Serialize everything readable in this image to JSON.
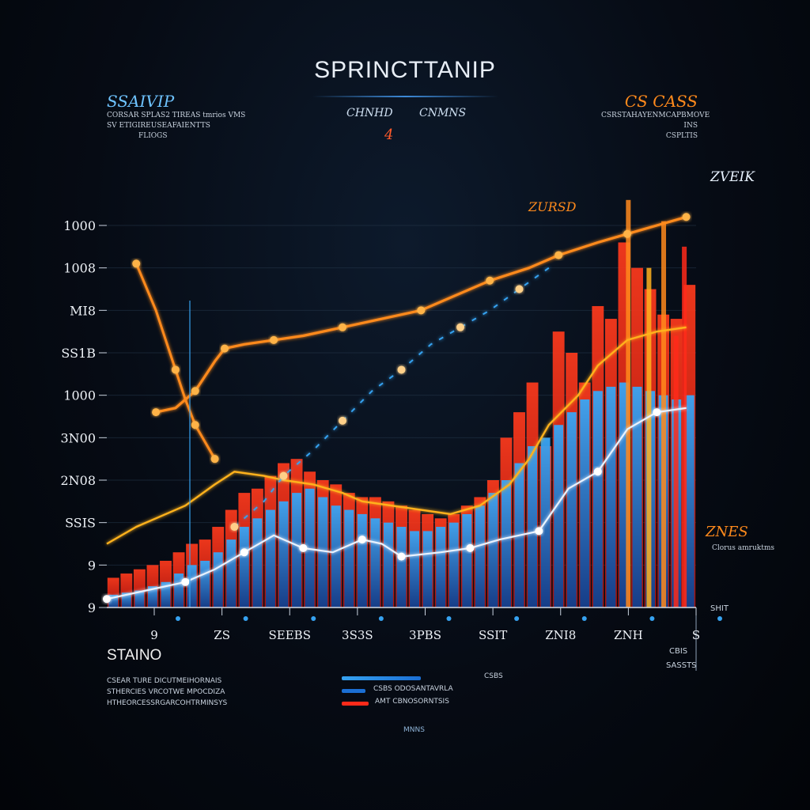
{
  "header": {
    "title": "SPRINCTTANIP"
  },
  "top_notes": {
    "left": {
      "heading": "SSAIVIP",
      "lines": [
        "CORSAR SPLAS2 TIREAS tmrios VMS",
        "SV ETIGIREUSEAFAIENTTS",
        "FLIOGS"
      ]
    },
    "center": {
      "label_a": "CHNHD",
      "label_b": "CNMNS",
      "marker": "4"
    },
    "right": {
      "heading": "CS CASS",
      "lines": [
        "CSRSTAHAYENMCAPBMOVE INS",
        "CSPLTIS"
      ]
    }
  },
  "callouts": {
    "mid_right": "ZURSD",
    "top_right": "ZVEIK",
    "lower_right_heading": "ZNES",
    "lower_right_line": "Clorus amruktms"
  },
  "colors": {
    "red": "#ff2a1a",
    "orange": "#ff8a1c",
    "yellow": "#ffb21e",
    "blue": "#1b6fd4",
    "light_blue": "#36a2f0",
    "white": "#e8f2ff",
    "grid": "#233447"
  },
  "chart_data": {
    "type": "bar",
    "title": "SPRINCTTANIP",
    "y_tick_labels": [
      "9",
      "9",
      "SSIS",
      "2N08",
      "3N00",
      "1000",
      "SS1B",
      "MI8",
      "1008",
      "1000"
    ],
    "x_tick_labels": [
      "9",
      "ZS",
      "SEEBS",
      "3S3S",
      "3PBS",
      "SSIT",
      "ZNI8",
      "ZNH",
      "S"
    ],
    "xlim": [
      0,
      60
    ],
    "ylim": [
      0,
      9
    ],
    "series": [
      {
        "name": "red bars",
        "type": "bar",
        "values": [
          0.7,
          0.8,
          0.9,
          1.0,
          1.1,
          1.3,
          1.5,
          1.6,
          1.9,
          2.3,
          2.7,
          2.8,
          3.1,
          3.4,
          3.5,
          3.2,
          3.0,
          2.9,
          2.7,
          2.6,
          2.6,
          2.5,
          2.4,
          2.3,
          2.2,
          2.1,
          2.2,
          2.4,
          2.6,
          3.0,
          4.0,
          4.6,
          5.3,
          3.8,
          6.5,
          6.0,
          5.3,
          7.1,
          6.8,
          8.6,
          8.0,
          7.5,
          6.9,
          6.8,
          7.6
        ]
      },
      {
        "name": "blue bars",
        "type": "bar",
        "values": [
          0.3,
          0.35,
          0.4,
          0.5,
          0.6,
          0.8,
          1.0,
          1.1,
          1.3,
          1.6,
          1.9,
          2.1,
          2.3,
          2.5,
          2.7,
          2.8,
          2.6,
          2.4,
          2.3,
          2.2,
          2.1,
          2.0,
          1.9,
          1.8,
          1.8,
          1.9,
          2.0,
          2.2,
          2.4,
          2.7,
          3.0,
          3.4,
          3.8,
          4.0,
          4.3,
          4.6,
          4.9,
          5.1,
          5.2,
          5.3,
          5.2,
          5.1,
          5.0,
          4.9,
          5.0
        ]
      },
      {
        "name": "orange line",
        "type": "line",
        "x": [
          5,
          7,
          9,
          11,
          12,
          14,
          17,
          20,
          24,
          28,
          32,
          35,
          39,
          43,
          46,
          50,
          53,
          56,
          59
        ],
        "y": [
          4.6,
          4.7,
          5.1,
          5.8,
          6.1,
          6.2,
          6.3,
          6.4,
          6.6,
          6.8,
          7.0,
          7.3,
          7.7,
          8.0,
          8.3,
          8.6,
          8.8,
          9.0,
          9.2
        ]
      },
      {
        "name": "blue-red stacked line",
        "type": "line",
        "x": [
          0,
          3,
          5,
          8,
          11,
          13,
          16,
          18,
          21,
          24,
          26,
          29,
          32,
          35,
          38,
          41,
          43,
          45,
          48,
          50,
          53,
          56,
          59
        ],
        "y": [
          1.5,
          1.9,
          2.1,
          2.4,
          2.9,
          3.2,
          3.1,
          3.0,
          2.9,
          2.7,
          2.5,
          2.4,
          2.3,
          2.2,
          2.4,
          2.9,
          3.5,
          4.3,
          5.0,
          5.7,
          6.3,
          6.5,
          6.6
        ]
      },
      {
        "name": "white line",
        "type": "line",
        "x": [
          0,
          4,
          8,
          11,
          14,
          17,
          20,
          23,
          26,
          28,
          30,
          34,
          37,
          40,
          44,
          47,
          50,
          53,
          56,
          59
        ],
        "y": [
          0.2,
          0.4,
          0.6,
          0.9,
          1.3,
          1.7,
          1.4,
          1.3,
          1.6,
          1.5,
          1.2,
          1.3,
          1.4,
          1.6,
          1.8,
          2.8,
          3.2,
          4.2,
          4.6,
          4.7
        ]
      },
      {
        "name": "orange descending line",
        "type": "line",
        "x": [
          3,
          5,
          7,
          8,
          9,
          10,
          11
        ],
        "y": [
          8.1,
          7.0,
          5.6,
          4.9,
          4.3,
          3.9,
          3.5
        ]
      },
      {
        "name": "dashed blue line",
        "type": "line",
        "x": [
          13,
          16,
          18,
          21,
          24,
          27,
          30,
          33,
          36,
          39,
          42,
          45
        ],
        "y": [
          1.9,
          2.5,
          3.1,
          3.7,
          4.4,
          5.1,
          5.6,
          6.2,
          6.6,
          7.0,
          7.5,
          8.0
        ]
      }
    ]
  },
  "footer": {
    "title": "STAINO",
    "lines": [
      "CSEAR TURE DICUTMEIHORNAIS",
      "STHERCIES VRCOTWE MPOCDIZA",
      "HTHEORCESSRGARCOHTRMINSYS"
    ],
    "legend": [
      {
        "label": "CSBS",
        "color": "#36a2f0"
      },
      {
        "label": "CSBS ODOSANTAVRLA",
        "color": "#1b6fd4"
      },
      {
        "label": "AMT CBNOSORNTSIS",
        "color": "#ff2a1a"
      }
    ],
    "legend_foot": "MNNS",
    "axis_end_label": "SHIT",
    "axis_end_sub": "CBIS",
    "axis_end_sub2": "SASSTS"
  }
}
